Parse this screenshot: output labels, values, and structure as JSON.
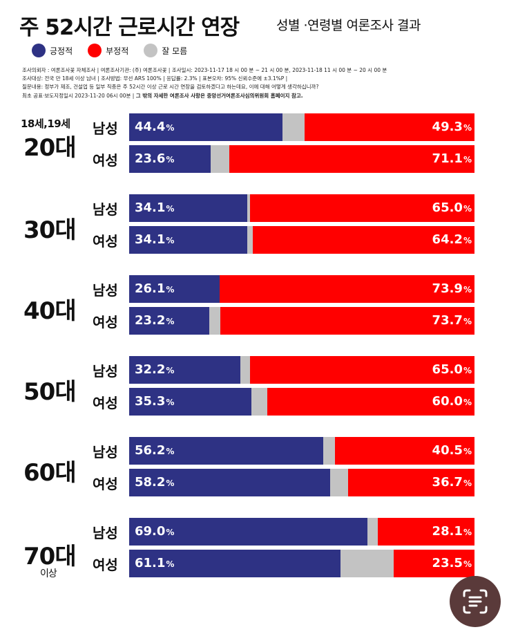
{
  "title": "주 52시간 근로시간 연장",
  "subtitle": "성별 ·연령별  여론조사 결과",
  "colors": {
    "positive": "#2e3284",
    "negative": "#ff0000",
    "unknown": "#c3c3c3"
  },
  "legend": [
    {
      "label": "긍정적",
      "color": "#2e3284"
    },
    {
      "label": "부정적",
      "color": "#ff0000"
    },
    {
      "label": "잘 모름",
      "color": "#c3c3c3"
    }
  ],
  "meta": {
    "line1": "조사의뢰자 : 여론조사꽃 자체조사 | 여론조사기관: (주) 여론조사꽃 | 조사일시: 2023-11-17  18 시 00 분 ~ 21 시 00 분, 2023-11-18  11 시 00 분 ~ 20 시 00 분",
    "line2": "조사대상: 전국 만 18세 이상 남녀 | 조사방법: 무선 ARS 100% | 응답률: 2.3% | 표본오차: 95% 신뢰수준에 ±3.1%P |",
    "line3": "질문내용: 정부가 제조, 건설업 등 일부 직종은 주 52시간 이상 근로 시간 연장을 검토하겠다고 하는데요, 이에 대해 어떻게 생각하십니까?",
    "line4a": "최초 공표·보도지정일시  2023-11-20 06시 00분 | ",
    "line4b": "그 밖의 자세한 여론조사 사항은 중앙선거여론조사심의위원회 홈페이지 참고."
  },
  "pct_sign": "%",
  "chart_data": {
    "type": "bar",
    "orientation": "horizontal-stacked",
    "title": "주 52시간 근로시간 연장",
    "subtitle": "성별 ·연령별  여론조사 결과",
    "series_names": [
      "긍정적",
      "잘 모름",
      "부정적"
    ],
    "groups": [
      {
        "label_top": "18세,19세",
        "label": "20대",
        "label_bottom": "",
        "rows": [
          {
            "gender": "남성",
            "positive": 44.4,
            "negative": 49.3,
            "unknown": 6.3,
            "positive_text": "44.4",
            "negative_text": "49.3"
          },
          {
            "gender": "여성",
            "positive": 23.6,
            "negative": 71.1,
            "unknown": 5.3,
            "positive_text": "23.6",
            "negative_text": "71.1"
          }
        ]
      },
      {
        "label_top": "",
        "label": "30대",
        "label_bottom": "",
        "rows": [
          {
            "gender": "남성",
            "positive": 34.1,
            "negative": 65.0,
            "unknown": 0.9,
            "positive_text": "34.1",
            "negative_text": "65.0"
          },
          {
            "gender": "여성",
            "positive": 34.1,
            "negative": 64.2,
            "unknown": 1.7,
            "positive_text": "34.1",
            "negative_text": "64.2"
          }
        ]
      },
      {
        "label_top": "",
        "label": "40대",
        "label_bottom": "",
        "rows": [
          {
            "gender": "남성",
            "positive": 26.1,
            "negative": 73.9,
            "unknown": 0.0,
            "positive_text": "26.1",
            "negative_text": "73.9"
          },
          {
            "gender": "여성",
            "positive": 23.2,
            "negative": 73.7,
            "unknown": 3.1,
            "positive_text": "23.2",
            "negative_text": "73.7"
          }
        ]
      },
      {
        "label_top": "",
        "label": "50대",
        "label_bottom": "",
        "rows": [
          {
            "gender": "남성",
            "positive": 32.2,
            "negative": 65.0,
            "unknown": 2.8,
            "positive_text": "32.2",
            "negative_text": "65.0"
          },
          {
            "gender": "여성",
            "positive": 35.3,
            "negative": 60.0,
            "unknown": 4.7,
            "positive_text": "35.3",
            "negative_text": "60.0"
          }
        ]
      },
      {
        "label_top": "",
        "label": "60대",
        "label_bottom": "",
        "rows": [
          {
            "gender": "남성",
            "positive": 56.2,
            "negative": 40.5,
            "unknown": 3.3,
            "positive_text": "56.2",
            "negative_text": "40.5"
          },
          {
            "gender": "여성",
            "positive": 58.2,
            "negative": 36.7,
            "unknown": 5.1,
            "positive_text": "58.2",
            "negative_text": "36.7"
          }
        ]
      },
      {
        "label_top": "",
        "label": "70대",
        "label_bottom": "이상",
        "rows": [
          {
            "gender": "남성",
            "positive": 69.0,
            "negative": 28.1,
            "unknown": 2.9,
            "positive_text": "69.0",
            "negative_text": "28.1"
          },
          {
            "gender": "여성",
            "positive": 61.1,
            "negative": 23.5,
            "unknown": 15.4,
            "positive_text": "61.1",
            "negative_text": "23.5"
          }
        ]
      }
    ]
  },
  "scan_button": {
    "icon": "text-scan-icon"
  }
}
